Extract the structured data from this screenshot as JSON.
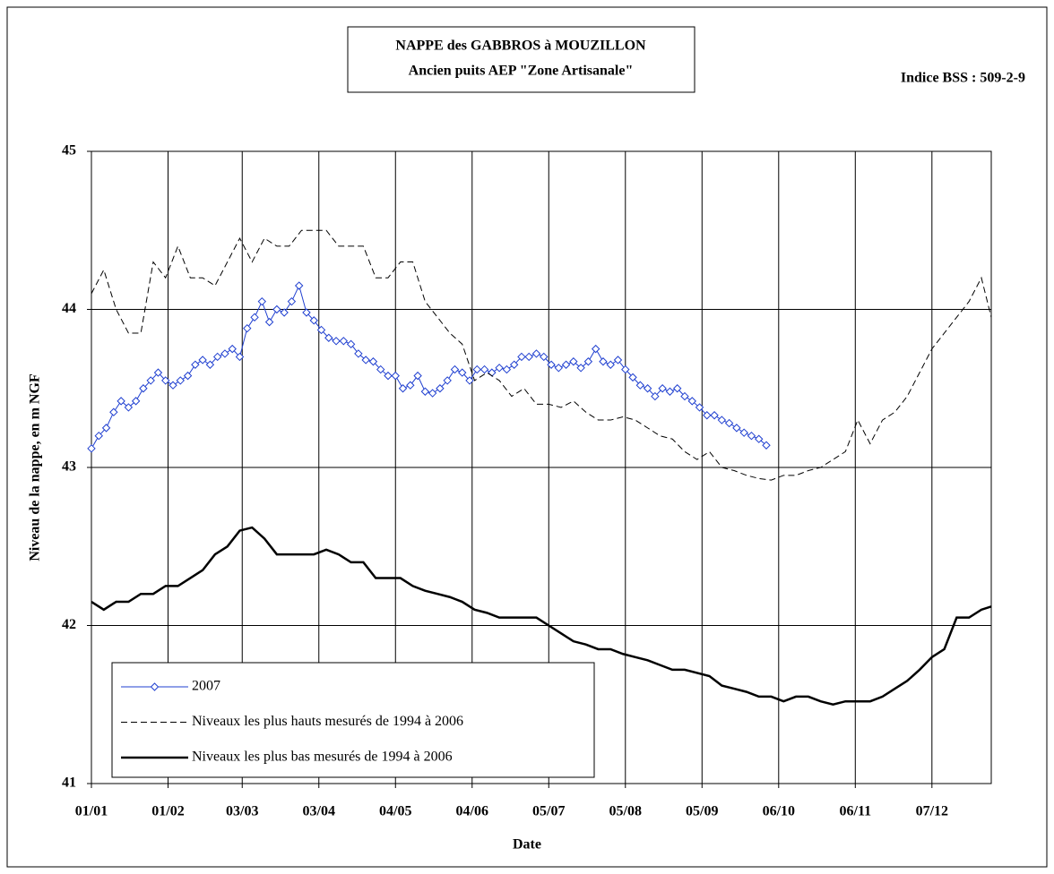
{
  "chart_data": {
    "type": "line",
    "title": [
      "NAPPE des GABBROS à MOUZILLON",
      "Ancien puits AEP \"Zone Artisanale\""
    ],
    "subtitle": "Indice BSS : 509-2-9",
    "x_label": "Date",
    "y_label": "Niveau de la nappe, en m NGF",
    "xlim": [
      0,
      364
    ],
    "ylim": [
      41,
      45
    ],
    "xticks": [
      {
        "value": 0,
        "label": "01/01"
      },
      {
        "value": 31,
        "label": "01/02"
      },
      {
        "value": 61,
        "label": "03/03"
      },
      {
        "value": 92,
        "label": "03/04"
      },
      {
        "value": 123,
        "label": "04/05"
      },
      {
        "value": 154,
        "label": "04/06"
      },
      {
        "value": 185,
        "label": "05/07"
      },
      {
        "value": 216,
        "label": "05/08"
      },
      {
        "value": 247,
        "label": "05/09"
      },
      {
        "value": 278,
        "label": "06/10"
      },
      {
        "value": 309,
        "label": "06/11"
      },
      {
        "value": 340,
        "label": "07/12"
      }
    ],
    "yticks": [
      41,
      42,
      43,
      44,
      45
    ],
    "grid": true,
    "legend": "lower left",
    "series": [
      {
        "name": "2007",
        "color": "#1f3fd0",
        "line_style": "solid",
        "line_width": 1,
        "marker": "diamond",
        "x": [
          0,
          3,
          6,
          9,
          12,
          15,
          18,
          21,
          24,
          27,
          30,
          33,
          36,
          39,
          42,
          45,
          48,
          51,
          54,
          57,
          60,
          63,
          66,
          69,
          72,
          75,
          78,
          81,
          84,
          87,
          90,
          93,
          96,
          99,
          102,
          105,
          108,
          111,
          114,
          117,
          120,
          123,
          126,
          129,
          132,
          135,
          138,
          141,
          144,
          147,
          150,
          153,
          156,
          159,
          162,
          165,
          168,
          171,
          174,
          177,
          180,
          183,
          186,
          189,
          192,
          195,
          198,
          201,
          204,
          207,
          210,
          213,
          216,
          219,
          222,
          225,
          228,
          231,
          234,
          237,
          240,
          243,
          246,
          249,
          252,
          255,
          258,
          261,
          264,
          267,
          270,
          273
        ],
        "values": [
          43.12,
          43.2,
          43.25,
          43.35,
          43.42,
          43.38,
          43.42,
          43.5,
          43.55,
          43.6,
          43.55,
          43.52,
          43.55,
          43.58,
          43.65,
          43.68,
          43.65,
          43.7,
          43.72,
          43.75,
          43.7,
          43.88,
          43.95,
          44.05,
          43.92,
          44.0,
          43.98,
          44.05,
          44.15,
          43.98,
          43.93,
          43.87,
          43.82,
          43.8,
          43.8,
          43.78,
          43.72,
          43.68,
          43.67,
          43.62,
          43.58,
          43.58,
          43.5,
          43.52,
          43.58,
          43.48,
          43.47,
          43.5,
          43.55,
          43.62,
          43.6,
          43.55,
          43.62,
          43.62,
          43.6,
          43.63,
          43.62,
          43.65,
          43.7,
          43.7,
          43.72,
          43.7,
          43.65,
          43.63,
          43.65,
          43.67,
          43.63,
          43.67,
          43.75,
          43.67,
          43.65,
          43.68,
          43.62,
          43.57,
          43.52,
          43.5,
          43.45,
          43.5,
          43.48,
          43.5,
          43.45,
          43.42,
          43.38,
          43.33,
          43.33,
          43.3,
          43.28,
          43.25,
          43.22,
          43.2,
          43.18,
          43.14
        ]
      },
      {
        "name": "Niveaux les plus hauts mesurés de 1994 à 2006",
        "color": "#000000",
        "line_style": "dashed",
        "line_width": 1,
        "marker": "none",
        "x": [
          0,
          5,
          10,
          15,
          20,
          25,
          30,
          35,
          40,
          45,
          50,
          55,
          60,
          65,
          70,
          75,
          80,
          85,
          90,
          95,
          100,
          105,
          110,
          115,
          120,
          125,
          130,
          135,
          140,
          145,
          150,
          155,
          160,
          165,
          170,
          175,
          180,
          185,
          190,
          195,
          200,
          205,
          210,
          215,
          220,
          225,
          230,
          235,
          240,
          245,
          250,
          255,
          260,
          265,
          270,
          275,
          280,
          285,
          290,
          295,
          300,
          305,
          310,
          315,
          320,
          325,
          330,
          335,
          340,
          345,
          350,
          355,
          360,
          364
        ],
        "values": [
          44.1,
          44.25,
          44.0,
          43.85,
          43.85,
          44.3,
          44.2,
          44.4,
          44.2,
          44.2,
          44.15,
          44.3,
          44.45,
          44.3,
          44.45,
          44.4,
          44.4,
          44.5,
          44.5,
          44.5,
          44.4,
          44.4,
          44.4,
          44.2,
          44.2,
          44.3,
          44.3,
          44.05,
          43.95,
          43.85,
          43.78,
          43.55,
          43.6,
          43.55,
          43.45,
          43.5,
          43.4,
          43.4,
          43.38,
          43.42,
          43.35,
          43.3,
          43.3,
          43.32,
          43.3,
          43.25,
          43.2,
          43.18,
          43.1,
          43.05,
          43.1,
          43.0,
          42.98,
          42.95,
          42.93,
          42.92,
          42.95,
          42.95,
          42.98,
          43.0,
          43.05,
          43.1,
          43.3,
          43.15,
          43.3,
          43.35,
          43.45,
          43.6,
          43.75,
          43.85,
          43.95,
          44.05,
          44.2,
          43.95
        ]
      },
      {
        "name": "Niveaux les plus bas mesurés de 1994 à 2006",
        "color": "#000000",
        "line_style": "solid",
        "line_width": 2.5,
        "marker": "none",
        "x": [
          0,
          5,
          10,
          15,
          20,
          25,
          30,
          35,
          40,
          45,
          50,
          55,
          60,
          65,
          70,
          75,
          80,
          85,
          90,
          95,
          100,
          105,
          110,
          115,
          120,
          125,
          130,
          135,
          140,
          145,
          150,
          155,
          160,
          165,
          170,
          175,
          180,
          185,
          190,
          195,
          200,
          205,
          210,
          215,
          220,
          225,
          230,
          235,
          240,
          245,
          250,
          255,
          260,
          265,
          270,
          275,
          280,
          285,
          290,
          295,
          300,
          305,
          310,
          315,
          320,
          325,
          330,
          335,
          340,
          345,
          350,
          355,
          360,
          364
        ],
        "values": [
          42.15,
          42.1,
          42.15,
          42.15,
          42.2,
          42.2,
          42.25,
          42.25,
          42.3,
          42.35,
          42.45,
          42.5,
          42.6,
          42.62,
          42.55,
          42.45,
          42.45,
          42.45,
          42.45,
          42.48,
          42.45,
          42.4,
          42.4,
          42.3,
          42.3,
          42.3,
          42.25,
          42.22,
          42.2,
          42.18,
          42.15,
          42.1,
          42.08,
          42.05,
          42.05,
          42.05,
          42.05,
          42.0,
          41.95,
          41.9,
          41.88,
          41.85,
          41.85,
          41.82,
          41.8,
          41.78,
          41.75,
          41.72,
          41.72,
          41.7,
          41.68,
          41.62,
          41.6,
          41.58,
          41.55,
          41.55,
          41.52,
          41.55,
          41.55,
          41.52,
          41.5,
          41.52,
          41.52,
          41.52,
          41.55,
          41.6,
          41.65,
          41.72,
          41.8,
          41.85,
          42.05,
          42.05,
          42.1,
          42.12
        ]
      }
    ]
  }
}
